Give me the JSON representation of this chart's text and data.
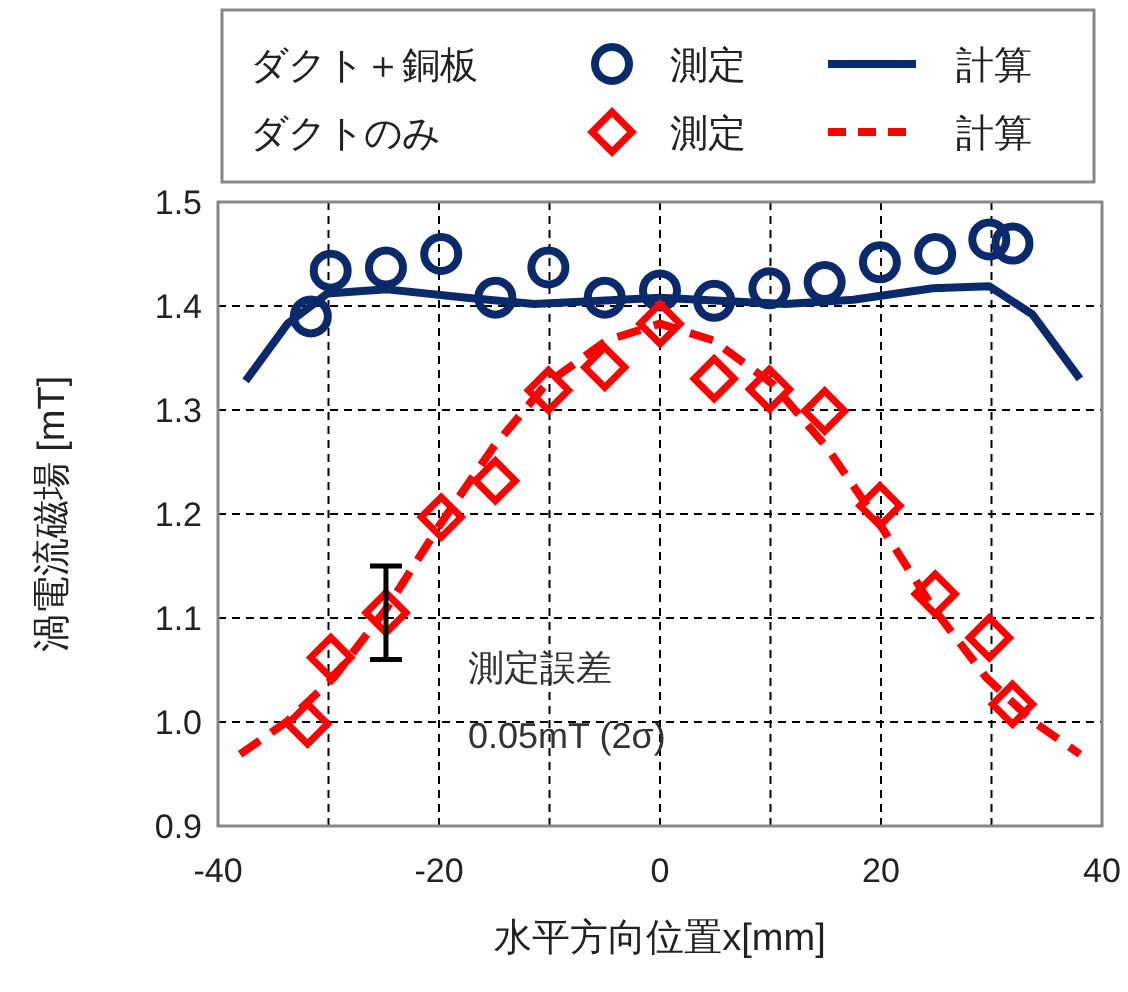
{
  "chart_data": {
    "type": "scatter",
    "xlabel": "水平方向位置x[mm]",
    "ylabel": "渦電流磁場 [mT]",
    "xlim": [
      -40,
      40
    ],
    "xticks": [
      -40,
      -20,
      0,
      20,
      40
    ],
    "ylim": [
      0.9,
      1.5
    ],
    "yticks": [
      {
        "value": 0.9,
        "label": "0.9"
      },
      {
        "value": 1.0,
        "label": "1.0"
      },
      {
        "value": 1.1,
        "label": "1.1"
      },
      {
        "value": 1.2,
        "label": "1.2"
      },
      {
        "value": 1.3,
        "label": "1.3"
      },
      {
        "value": 1.4,
        "label": "1.4"
      },
      {
        "value": 1.5,
        "label": "1.5"
      }
    ],
    "grid": true,
    "legend": "top",
    "annotations": [
      "ダクト＋銅板",
      "ダクトのみ",
      "測定誤差",
      "0.05mT (2σ)"
    ],
    "series": [
      {
        "name": "測定",
        "marker": "circle",
        "color": "#0b2a6b",
        "x": [
          -31.6,
          -29.8,
          -24.8,
          -19.8,
          -14.9,
          -10.1,
          -5,
          0,
          4.9,
          9.9,
          14.9,
          19.9,
          24.9,
          29.8,
          31.9
        ],
        "values": [
          1.39,
          1.434,
          1.437,
          1.45,
          1.408,
          1.437,
          1.408,
          1.415,
          1.405,
          1.417,
          1.423,
          1.442,
          1.45,
          1.464,
          1.46
        ]
      },
      {
        "name": "計算",
        "type": "line",
        "line_style": "solid",
        "color": "#0b2a6b",
        "x": [
          -37.5,
          -33.7,
          -30.1,
          -24.7,
          -17.5,
          -11.4,
          -5.4,
          0,
          5.4,
          11.4,
          17.5,
          24.7,
          29.8,
          33.7,
          38
        ],
        "values": [
          1.328,
          1.383,
          1.412,
          1.416,
          1.408,
          1.402,
          1.405,
          1.408,
          1.405,
          1.402,
          1.406,
          1.417,
          1.419,
          1.392,
          1.33
        ]
      },
      {
        "name": "測定",
        "marker": "diamond",
        "color": "#ff0000",
        "x": [
          -31.9,
          -29.8,
          -24.8,
          -19.8,
          -14.9,
          -10.1,
          -5,
          0,
          4.9,
          9.9,
          14.9,
          19.9,
          24.9,
          29.8,
          31.9
        ],
        "values": [
          0.998,
          1.062,
          1.105,
          1.197,
          1.232,
          1.319,
          1.341,
          1.383,
          1.33,
          1.32,
          1.299,
          1.208,
          1.123,
          1.081,
          1.017
        ],
        "errors": [
          null,
          null,
          0.045,
          null,
          null,
          null,
          null,
          null,
          null,
          null,
          null,
          null,
          null,
          null,
          null
        ]
      },
      {
        "name": "計算",
        "type": "line",
        "line_style": "dashed",
        "color": "#ff0000",
        "x": [
          -38,
          -33.7,
          -29.5,
          -24.7,
          -19.9,
          -15.1,
          -10.3,
          -4.8,
          0,
          4.8,
          10.2,
          15.1,
          19.9,
          24.7,
          29.5,
          33.7,
          38
        ],
        "values": [
          0.969,
          1.001,
          1.043,
          1.11,
          1.19,
          1.264,
          1.325,
          1.367,
          1.383,
          1.367,
          1.325,
          1.264,
          1.19,
          1.11,
          1.043,
          1.001,
          0.969
        ]
      }
    ]
  }
}
